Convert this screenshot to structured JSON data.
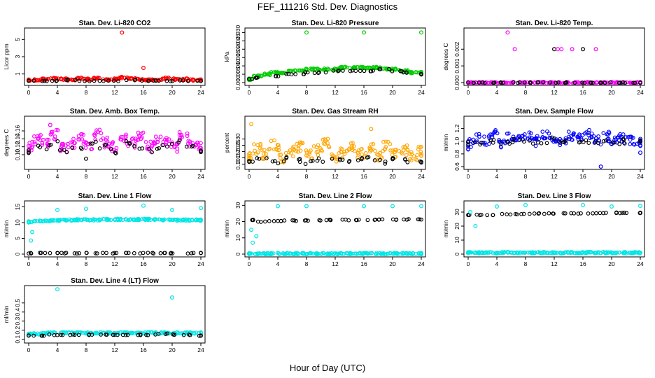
{
  "page": {
    "title": "FEF_111216  Std. Dev. Diagnostics",
    "xlabel": "Hour of Day (UTC)"
  },
  "chart_data": [
    {
      "type": "scatter",
      "title": "Stan. Dev. Li-820 CO2",
      "ylabel": "Licor ppm",
      "xlim": [
        0,
        24
      ],
      "xticks": [
        0,
        4,
        8,
        12,
        16,
        20,
        24
      ],
      "ylim": [
        0,
        6
      ],
      "yticks": [
        1,
        3,
        5
      ],
      "series": [
        {
          "color": "#ff0000",
          "values": [
            0.3,
            0.3,
            0.4,
            0.5,
            0.4,
            0.3,
            0.5,
            0.4,
            0.5,
            0.3,
            0.4,
            0.6,
            0.5,
            0.4,
            0.3,
            0.3,
            0.5,
            0.4,
            0.4,
            0.3,
            0.3
          ]
        },
        {
          "color": "#000000",
          "values": [
            0.2,
            0.2,
            0.2,
            0.3,
            0.2,
            0.2,
            0.2,
            0.3,
            0.2,
            0.2,
            0.2,
            0.2,
            0.2
          ]
        }
      ],
      "outliers": [
        {
          "x": 13,
          "y": 5.8,
          "color": "#ff0000"
        },
        {
          "x": 16,
          "y": 1.7,
          "color": "#ff0000"
        }
      ]
    },
    {
      "type": "scatter",
      "title": "Stan. Dev. Li-820 Pressure",
      "ylabel": "kPa",
      "xlim": [
        0,
        24
      ],
      "xticks": [
        0,
        4,
        8,
        12,
        16,
        20,
        24
      ],
      "ylim": [
        0,
        0.031
      ],
      "yticks": [
        0.0,
        0.005,
        0.01,
        0.015,
        0.02,
        0.025,
        0.03
      ],
      "series": [
        {
          "color": "#00cc00",
          "values": [
            0.002,
            0.004,
            0.005,
            0.006,
            0.006,
            0.007,
            0.007,
            0.008,
            0.008,
            0.008,
            0.008,
            0.009,
            0.009,
            0.009,
            0.009,
            0.009,
            0.008,
            0.008,
            0.007,
            0.006,
            0.006
          ]
        },
        {
          "color": "#000000",
          "values": [
            0.002,
            0.003,
            0.004,
            0.005,
            0.005,
            0.006,
            0.006,
            0.007,
            0.007,
            0.007,
            0.007,
            0.008,
            0.007,
            0.006,
            0.005
          ]
        }
      ],
      "outliers": [
        {
          "x": 8,
          "y": 0.03,
          "color": "#00cc00"
        },
        {
          "x": 16,
          "y": 0.03,
          "color": "#00cc00"
        },
        {
          "x": 24,
          "y": 0.03,
          "color": "#00cc00"
        }
      ]
    },
    {
      "type": "scatter",
      "title": "Stan. Dev. Li-820 Temp.",
      "ylabel": "degrees C",
      "xlim": [
        0,
        24
      ],
      "xticks": [
        0,
        4,
        8,
        12,
        16,
        20,
        24
      ],
      "ylim": [
        0,
        0.0031
      ],
      "yticks": [
        0.0,
        0.001,
        0.002
      ],
      "series": [
        {
          "color": "#ff00ff",
          "values": [
            0.0,
            0.0,
            0.0,
            0.0,
            0.0,
            0.0,
            0.0,
            0.0,
            0.0,
            0.0,
            0.0,
            0.0,
            0.0,
            0.0,
            0.0,
            0.0,
            0.0,
            0.0,
            0.0,
            0.0,
            0.0
          ]
        },
        {
          "color": "#000000",
          "values": [
            0.0,
            0.0,
            0.0,
            0.0,
            0.0,
            0.0,
            0.0,
            0.0,
            0.0,
            0.0,
            0.0,
            0.0,
            0.0,
            0.0,
            0.0
          ]
        }
      ],
      "outliers": [
        {
          "x": 5.5,
          "y": 0.003,
          "color": "#ff00ff"
        },
        {
          "x": 6.5,
          "y": 0.002,
          "color": "#ff00ff"
        },
        {
          "x": 12,
          "y": 0.002,
          "color": "#000000"
        },
        {
          "x": 12.5,
          "y": 0.002,
          "color": "#ff00ff"
        },
        {
          "x": 13,
          "y": 0.002,
          "color": "#ff00ff"
        },
        {
          "x": 14.5,
          "y": 0.002,
          "color": "#ff00ff"
        },
        {
          "x": 16,
          "y": 0.002,
          "color": "#000000"
        },
        {
          "x": 17.8,
          "y": 0.002,
          "color": "#ff00ff"
        }
      ]
    },
    {
      "type": "scatter",
      "title": "Stan. Dev. Amb. Box Temp.",
      "ylabel": "degrees C",
      "xlim": [
        0,
        24
      ],
      "xticks": [
        0,
        4,
        8,
        12,
        16,
        20,
        24
      ],
      "ylim": [
        0.07,
        0.19
      ],
      "yticks": [
        0.1,
        0.12,
        0.14,
        0.16
      ],
      "series": [
        {
          "color": "#ff00ff",
          "values": [
            0.12,
            0.14,
            0.13,
            0.15,
            0.12,
            0.13,
            0.14,
            0.12,
            0.15,
            0.13,
            0.12,
            0.14,
            0.13,
            0.15,
            0.12,
            0.14,
            0.13,
            0.12,
            0.15,
            0.13,
            0.12
          ]
        },
        {
          "color": "#000000",
          "values": [
            0.11,
            0.12,
            0.13,
            0.11,
            0.12,
            0.13,
            0.12,
            0.11,
            0.13,
            0.12,
            0.11,
            0.12,
            0.13,
            0.12,
            0.11
          ]
        }
      ],
      "outliers": [
        {
          "x": 3,
          "y": 0.175,
          "color": "#ff00ff"
        },
        {
          "x": 8,
          "y": 0.09,
          "color": "#000000"
        }
      ]
    },
    {
      "type": "scatter",
      "title": "Stan. Dev. Gas Stream RH",
      "ylabel": "percent",
      "xlim": [
        0,
        24
      ],
      "xticks": [
        0,
        4,
        8,
        12,
        16,
        20,
        24
      ],
      "ylim": [
        0.08,
        0.46
      ],
      "yticks": [
        0.1,
        0.15,
        0.2,
        0.25,
        0.3
      ],
      "series": [
        {
          "color": "#ffa500",
          "values": [
            0.16,
            0.22,
            0.18,
            0.25,
            0.15,
            0.2,
            0.24,
            0.17,
            0.21,
            0.26,
            0.16,
            0.19,
            0.23,
            0.18,
            0.22,
            0.17,
            0.24,
            0.19,
            0.21,
            0.16,
            0.2
          ]
        },
        {
          "color": "#000000",
          "values": [
            0.12,
            0.13,
            0.12,
            0.14,
            0.13,
            0.12,
            0.13,
            0.14,
            0.12,
            0.13,
            0.14,
            0.12,
            0.13,
            0.12,
            0.13
          ]
        }
      ],
      "outliers": [
        {
          "x": 0.3,
          "y": 0.42,
          "color": "#ffa500"
        },
        {
          "x": 17,
          "y": 0.38,
          "color": "#ffa500"
        }
      ]
    },
    {
      "type": "scatter",
      "title": "Stan. Dev. Sample Flow",
      "ylabel": "ml/min",
      "xlim": [
        0,
        24
      ],
      "xticks": [
        0,
        4,
        8,
        12,
        16,
        20,
        24
      ],
      "ylim": [
        0.6,
        1.35
      ],
      "yticks": [
        0.6,
        0.8,
        1.0,
        1.2
      ],
      "series": [
        {
          "color": "#0000ff",
          "values": [
            0.95,
            1.05,
            1.0,
            1.1,
            0.98,
            1.06,
            1.02,
            1.08,
            1.0,
            1.12,
            1.04,
            0.99,
            1.09,
            1.03,
            1.1,
            1.01,
            1.07,
            0.98,
            1.05,
            1.02,
            0.97
          ]
        },
        {
          "color": "#000000",
          "values": [
            0.95,
            0.98,
            1.0,
            0.99,
            1.01,
            1.0,
            0.98,
            1.02,
            1.0,
            0.99,
            1.01,
            1.0,
            0.98,
            1.0,
            0.99
          ]
        }
      ],
      "outliers": [
        {
          "x": 18.5,
          "y": 0.6,
          "color": "#0000ff"
        },
        {
          "x": 24,
          "y": 0.82,
          "color": "#0000ff"
        }
      ]
    },
    {
      "type": "scatter",
      "title": "Stan. Dev. Line 1 Flow",
      "ylabel": "ml/min",
      "xlim": [
        0,
        24
      ],
      "xticks": [
        0,
        4,
        8,
        12,
        16,
        20,
        24
      ],
      "ylim": [
        0,
        16
      ],
      "yticks": [
        0,
        5,
        10,
        15
      ],
      "series": [
        {
          "color": "#00e5e5",
          "values": [
            10.2,
            10.5,
            10.6,
            10.7,
            10.8,
            10.8,
            10.9,
            10.9,
            10.9,
            11.0,
            11.0,
            11.0,
            11.0,
            11.0,
            11.0,
            10.9,
            10.9,
            10.8,
            10.8,
            10.8,
            10.8
          ]
        },
        {
          "color": "#000000",
          "values": [
            0.3,
            0.3,
            0.3,
            0.3,
            0.3,
            0.3,
            0.3,
            0.3,
            0.3,
            0.3,
            0.3,
            0.3,
            0.3,
            0.3,
            0.3
          ]
        }
      ],
      "outliers": [
        {
          "x": 0.3,
          "y": 4.3,
          "color": "#00e5e5"
        },
        {
          "x": 0.5,
          "y": 7.0,
          "color": "#00e5e5"
        },
        {
          "x": 4,
          "y": 14,
          "color": "#00e5e5"
        },
        {
          "x": 8,
          "y": 14.4,
          "color": "#00e5e5"
        },
        {
          "x": 16,
          "y": 15.4,
          "color": "#00e5e5"
        },
        {
          "x": 20,
          "y": 14.0,
          "color": "#00e5e5"
        },
        {
          "x": 24,
          "y": 14.6,
          "color": "#00e5e5"
        }
      ]
    },
    {
      "type": "scatter",
      "title": "Stan. Dev. Line 2 Flow",
      "ylabel": "ml/min",
      "xlim": [
        0,
        24
      ],
      "xticks": [
        0,
        4,
        8,
        12,
        16,
        20,
        24
      ],
      "ylim": [
        0,
        31
      ],
      "yticks": [
        0,
        10,
        20,
        30
      ],
      "series": [
        {
          "color": "#00e5e5",
          "values": [
            0.3,
            0.3,
            0.3,
            0.3,
            0.3,
            0.3,
            0.3,
            0.3,
            0.3,
            0.3,
            0.3,
            0.3,
            0.3,
            0.3,
            0.3,
            0.3,
            0.3,
            0.3,
            0.3,
            0.3,
            0.3
          ]
        },
        {
          "color": "#000000",
          "values": [
            21,
            20,
            20.5,
            20.5,
            20.6,
            20.8,
            20.8,
            21,
            21,
            21,
            21,
            21.2,
            21.2,
            21.3,
            21.3
          ]
        }
      ],
      "outliers": [
        {
          "x": 0.3,
          "y": 15,
          "color": "#00e5e5"
        },
        {
          "x": 0.5,
          "y": 7,
          "color": "#00e5e5"
        },
        {
          "x": 1,
          "y": 11,
          "color": "#00e5e5"
        },
        {
          "x": 4,
          "y": 29.5,
          "color": "#00e5e5"
        },
        {
          "x": 8,
          "y": 29.5,
          "color": "#00e5e5"
        },
        {
          "x": 16,
          "y": 29.5,
          "color": "#00e5e5"
        },
        {
          "x": 20,
          "y": 29.5,
          "color": "#00e5e5"
        },
        {
          "x": 24,
          "y": 29.5,
          "color": "#00e5e5"
        }
      ]
    },
    {
      "type": "scatter",
      "title": "Stan. Dev. Line 3 Flow",
      "ylabel": "ml/min",
      "xlim": [
        0,
        24
      ],
      "xticks": [
        0,
        4,
        8,
        12,
        16,
        20,
        24
      ],
      "ylim": [
        0,
        36
      ],
      "yticks": [
        0,
        10,
        20,
        30
      ],
      "series": [
        {
          "color": "#00e5e5",
          "values": [
            1,
            1,
            1,
            1,
            1,
            1,
            1,
            1,
            1,
            1,
            1,
            1,
            1,
            1,
            1,
            1,
            1,
            1,
            1,
            1,
            1
          ]
        },
        {
          "color": "#000000",
          "values": [
            28,
            28,
            28,
            28.5,
            28.5,
            29,
            29,
            29,
            29,
            29,
            29,
            29.5,
            29.5,
            29.5,
            29.5
          ]
        }
      ],
      "outliers": [
        {
          "x": 0.3,
          "y": 30,
          "color": "#00e5e5"
        },
        {
          "x": 1,
          "y": 20,
          "color": "#00e5e5"
        },
        {
          "x": 4,
          "y": 34,
          "color": "#00e5e5"
        },
        {
          "x": 8,
          "y": 35,
          "color": "#00e5e5"
        },
        {
          "x": 16,
          "y": 35,
          "color": "#00e5e5"
        },
        {
          "x": 20,
          "y": 34,
          "color": "#00e5e5"
        },
        {
          "x": 24,
          "y": 34.5,
          "color": "#00e5e5"
        }
      ]
    },
    {
      "type": "scatter",
      "title": "Stan. Dev. Line 4 (LT) Flow",
      "ylabel": "ml/min",
      "xlim": [
        0,
        24
      ],
      "xticks": [
        0,
        4,
        8,
        12,
        16,
        20,
        24
      ],
      "ylim": [
        0.09,
        0.66
      ],
      "yticks": [
        0.1,
        0.2,
        0.3,
        0.4,
        0.5
      ],
      "series": [
        {
          "color": "#00e5e5",
          "values": [
            0.16,
            0.16,
            0.17,
            0.17,
            0.17,
            0.17,
            0.17,
            0.17,
            0.17,
            0.17,
            0.17,
            0.17,
            0.17,
            0.17,
            0.17,
            0.17,
            0.17,
            0.17,
            0.17,
            0.17,
            0.17
          ]
        },
        {
          "color": "#000000",
          "values": [
            0.14,
            0.14,
            0.15,
            0.15,
            0.15,
            0.15,
            0.15,
            0.15,
            0.15,
            0.15,
            0.15,
            0.16,
            0.15,
            0.15,
            0.14
          ]
        }
      ],
      "outliers": [
        {
          "x": 4,
          "y": 0.65,
          "color": "#00e5e5"
        },
        {
          "x": 20,
          "y": 0.56,
          "color": "#00e5e5"
        }
      ]
    }
  ]
}
